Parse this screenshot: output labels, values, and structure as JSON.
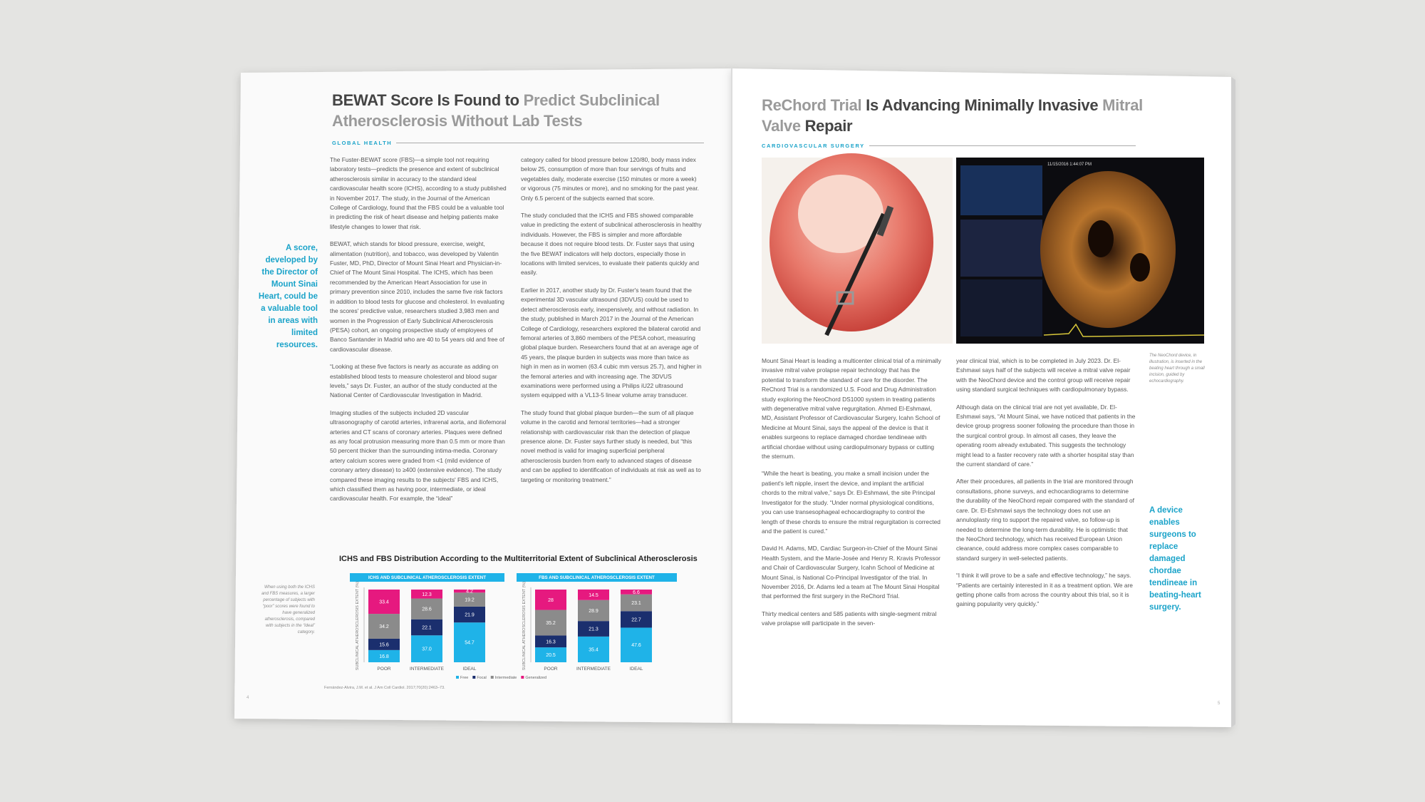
{
  "left_page": {
    "title_parts": [
      {
        "text": "BEWAT Score Is Found to",
        "tone": "dark"
      },
      {
        "text": "Predict Subclinical Atherosclerosis Without Lab Tests",
        "tone": "light"
      }
    ],
    "section": "GLOBAL HEALTH",
    "columns": [
      [
        "The Fuster-BEWAT score (FBS)—a simple tool not requiring laboratory tests—predicts the presence and extent of subclinical atherosclerosis similar in accuracy to the standard ideal cardiovascular health score (ICHS), according to a study published in November 2017. The study, in the Journal of the American College of Cardiology, found that the FBS could be a valuable tool in predicting the risk of heart disease and helping patients make lifestyle changes to lower that risk.",
        "BEWAT, which stands for blood pressure, exercise, weight, alimentation (nutrition), and tobacco, was developed by Valentin Fuster, MD, PhD, Director of Mount Sinai Heart and Physician-in-Chief of The Mount Sinai Hospital. The ICHS, which has been recommended by the American Heart Association for use in primary prevention since 2010, includes the same five risk factors in addition to blood tests for glucose and cholesterol. In evaluating the scores' predictive value, researchers studied 3,983 men and women in the Progression of Early Subclinical Atherosclerosis (PESA) cohort, an ongoing prospective study of employees of Banco Santander in Madrid who are 40 to 54 years old and free of cardiovascular disease.",
        "“Looking at these five factors is nearly as accurate as adding on established blood tests to measure cholesterol and blood sugar levels,” says Dr. Fuster, an author of the study conducted at the National Center of Cardiovascular Investigation in Madrid.",
        "Imaging studies of the subjects included 2D vascular ultrasonography of carotid arteries, infrarenal aorta, and iliofemoral arteries and CT scans of coronary arteries. Plaques were defined as any focal protrusion measuring more than 0.5 mm or more than 50 percent thicker than the surrounding intima-media. Coronary artery calcium scores were graded from <1 (mild evidence of coronary artery disease) to ≥400 (extensive evidence). The study compared these imaging results to the subjects' FBS and ICHS, which classified them as having poor, intermediate, or ideal cardiovascular health. For example, the “ideal”"
      ],
      [
        "category called for blood pressure below 120/80, body mass index below 25, consumption of more than four servings of fruits and vegetables daily, moderate exercise (150 minutes or more a week) or vigorous (75 minutes or more), and no smoking for the past year. Only 6.5 percent of the subjects earned that score.",
        "The study concluded that the ICHS and FBS showed comparable value in predicting the extent of subclinical atherosclerosis in healthy individuals. However, the FBS is simpler and more affordable because it does not require blood tests. Dr. Fuster says that using the five BEWAT indicators will help doctors, especially those in locations with limited services, to evaluate their patients quickly and easily.",
        "Earlier in 2017, another study by Dr. Fuster's team found that the experimental 3D vascular ultrasound (3DVUS) could be used to detect atherosclerosis early, inexpensively, and without radiation. In the study, published in March 2017 in the Journal of the American College of Cardiology, researchers explored the bilateral carotid and femoral arteries of 3,860 members of the PESA cohort, measuring global plaque burden. Researchers found that at an average age of 45 years, the plaque burden in subjects was more than twice as high in men as in women (63.4 cubic mm versus 25.7), and higher in the femoral arteries and with increasing age. The 3DVUS examinations were performed using a Philips iU22 ultrasound system equipped with a VL13-5 linear volume array transducer.",
        "The study found that global plaque burden—the sum of all plaque volume in the carotid and femoral territories—had a stronger relationship with cardiovascular risk than the detection of plaque presence alone. Dr. Fuster says further study is needed, but “this novel method is valid for imaging superficial peripheral atherosclerosis burden from early to advanced stages of disease and can be applied to identification of individuals at risk as well as to targeting or monitoring treatment.”"
      ]
    ],
    "pull_quote": "A score, developed by the Director of Mount Sinai Heart, could be a valuable tool in areas with limited resources.",
    "figure": {
      "type": "stacked-bar",
      "title": "ICHS and FBS Distribution According to the Multiterritorial Extent of Subclinical Atherosclerosis",
      "y_label": "SUBCLINICAL ATHEROSCLEROSIS EXTENT (%)",
      "ylim": [
        0,
        100
      ],
      "categories": [
        "POOR",
        "INTERMEDIATE",
        "IDEAL"
      ],
      "series": [
        {
          "name": "Free",
          "color": "#1fb3e8"
        },
        {
          "name": "Focal",
          "color": "#1b2f6e"
        },
        {
          "name": "Intermediate",
          "color": "#8b8b8b"
        },
        {
          "name": "Generalized",
          "color": "#e6197f"
        }
      ],
      "panels": [
        {
          "title": "ICHS AND SUBCLINICAL ATHEROSCLEROSIS EXTENT",
          "values": [
            [
              16.8,
              37,
              54.7
            ],
            [
              15.6,
              22.1,
              21.9
            ],
            [
              34.2,
              28.6,
              19.2
            ],
            [
              33.4,
              12.3,
              4.2
            ]
          ],
          "value_labels": [
            [
              "16.8",
              "37.0",
              "54.7"
            ],
            [
              "15.6",
              "22.1",
              "21.9"
            ],
            [
              "34.2",
              "28.6",
              "19.2"
            ],
            [
              "33.4",
              "12.3",
              "4.2"
            ]
          ]
        },
        {
          "title": "FBS AND SUBCLINICAL ATHEROSCLEROSIS EXTENT",
          "values": [
            [
              20.5,
              35.4,
              47.6
            ],
            [
              16.3,
              21.3,
              22.7
            ],
            [
              35.2,
              28.9,
              23.1
            ],
            [
              28,
              14.5,
              6.6
            ]
          ]
        }
      ],
      "caption": "When using both the ICHS and FBS measures, a larger percentage of subjects with “poor” scores were found to have generalized atherosclerosis, compared with subjects in the “ideal” category.",
      "citation": "Fernández-Alvira, J.M. et al. J Am Coll Cardiol. 2017;70(20):2463–73."
    },
    "page_number": "4"
  },
  "right_page": {
    "title_parts": [
      {
        "text": "ReChord Trial",
        "tone": "light"
      },
      {
        "text": "Is Advancing Minimally Invasive",
        "tone": "dark"
      },
      {
        "text": "Mitral Valve",
        "tone": "light"
      },
      {
        "text": "Repair",
        "tone": "dark"
      }
    ],
    "section": "CARDIOVASCULAR SURGERY",
    "image_timestamp": "11/15/2016 1:44:07 PM",
    "caption": "The NeoChord device, in illustration, is inserted in the beating heart through a small incision, guided by echocardiography.",
    "columns": [
      [
        "Mount Sinai Heart is leading a multicenter clinical trial of a minimally invasive mitral valve prolapse repair technology that has the potential to transform the standard of care for the disorder. The ReChord Trial is a randomized U.S. Food and Drug Administration study exploring the NeoChord DS1000 system in treating patients with degenerative mitral valve regurgitation. Ahmed El-Eshmawi, MD, Assistant Professor of Cardiovascular Surgery, Icahn School of Medicine at Mount Sinai, says the appeal of the device is that it enables surgeons to replace damaged chordae tendineae with artificial chordae without using cardiopulmonary bypass or cutting the sternum.",
        "“While the heart is beating, you make a small incision under the patient's left nipple, insert the device, and implant the artificial chords to the mitral valve,” says Dr. El-Eshmawi, the site Principal Investigator for the study. “Under normal physiological conditions, you can use transesophageal echocardiography to control the length of these chords to ensure the mitral regurgitation is corrected and the patient is cured.”",
        "David H. Adams, MD, Cardiac Surgeon-in-Chief of the Mount Sinai Health System, and the Marie-Josée and Henry R. Kravis Professor and Chair of Cardiovascular Surgery, Icahn School of Medicine at Mount Sinai, is National Co-Principal Investigator of the trial. In November 2016, Dr. Adams led a team at The Mount Sinai Hospital that performed the first surgery in the ReChord Trial.",
        "Thirty medical centers and 585 patients with single-segment mitral valve prolapse will participate in the seven-"
      ],
      [
        "year clinical trial, which is to be completed in July 2023. Dr. El-Eshmawi says half of the subjects will receive a mitral valve repair with the NeoChord device and the control group will receive repair using standard surgical techniques with cardiopulmonary bypass.",
        "Although data on the clinical trial are not yet available, Dr. El-Eshmawi says, “At Mount Sinai, we have noticed that patients in the device group progress sooner following the procedure than those in the surgical control group. In almost all cases, they leave the operating room already extubated. This suggests the technology might lead to a faster recovery rate with a shorter hospital stay than the current standard of care.”",
        "After their procedures, all patients in the trial are monitored through consultations, phone surveys, and echocardiograms to determine the durability of the NeoChord repair compared with the standard of care. Dr. El-Eshmawi says the technology does not use an annuloplasty ring to support the repaired valve, so follow-up is needed to determine the long-term durability. He is optimistic that the NeoChord technology, which has received European Union clearance, could address more complex cases comparable to standard surgery in well-selected patients.",
        "“I think it will prove to be a safe and effective technology,” he says. “Patients are certainly interested in it as a treatment option. We are getting phone calls from across the country about this trial, so it is gaining popularity very quickly.”"
      ]
    ],
    "pull_quote": "A device enables surgeons to replace damaged chordae tendineae in beating-heart surgery.",
    "page_number": "5"
  }
}
